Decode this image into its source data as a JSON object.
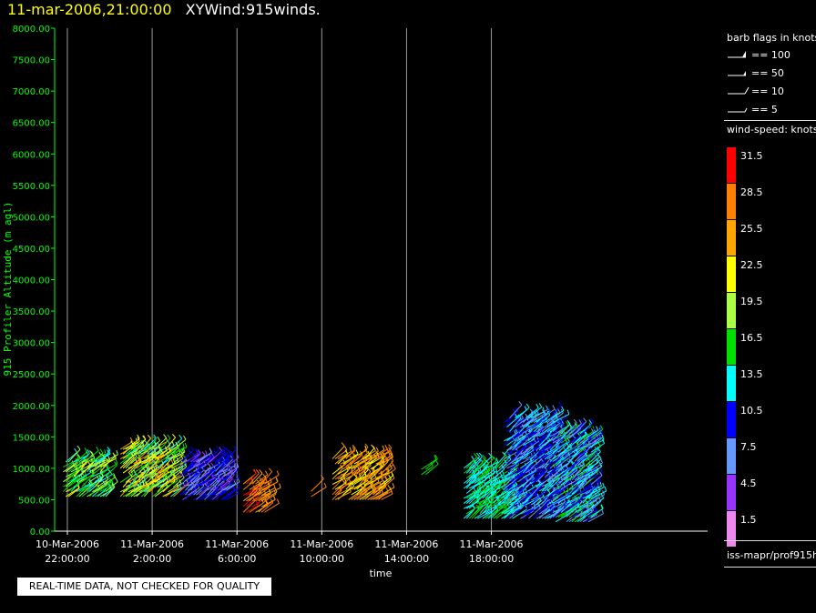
{
  "header": {
    "timestamp": "11-mar-2006,21:00:00",
    "product": "XYWind:915winds."
  },
  "legend": {
    "barb_title": "barb flags in knots",
    "barbs": [
      {
        "label": "== 100"
      },
      {
        "label": "== 50"
      },
      {
        "label": "== 10"
      },
      {
        "label": "== 5"
      }
    ],
    "speed_title": "wind-speed: knots",
    "colorbar": [
      {
        "label": "31.5",
        "color": "#ff0000"
      },
      {
        "label": "28.5",
        "color": "#ff8000"
      },
      {
        "label": "25.5",
        "color": "#ffa500"
      },
      {
        "label": "22.5",
        "color": "#ffff00"
      },
      {
        "label": "19.5",
        "color": "#aaff44"
      },
      {
        "label": "16.5",
        "color": "#00e000"
      },
      {
        "label": "13.5",
        "color": "#00ffff"
      },
      {
        "label": "10.5",
        "color": "#0000ff"
      },
      {
        "label": "7.5",
        "color": "#6699ff"
      },
      {
        "label": "4.5",
        "color": "#9933ff"
      },
      {
        "label": "1.5",
        "color": "#ee88ee"
      }
    ],
    "source_path": "iss-mapr/prof915h"
  },
  "notice": "REAL-TIME DATA, NOT CHECKED FOR QUALITY",
  "chart_data": {
    "type": "scatter",
    "title": "",
    "xlabel": "time",
    "ylabel": "915 Profiler Altitude (m agl)",
    "ylim": [
      0,
      8000
    ],
    "yticks": [
      "0.00",
      "500.00",
      "1000.00",
      "1500.00",
      "2000.00",
      "2500.00",
      "3000.00",
      "3500.00",
      "4000.00",
      "4500.00",
      "5000.00",
      "5500.00",
      "6000.00",
      "6500.00",
      "7000.00",
      "7500.00",
      "8000.00"
    ],
    "xlim_hours": [
      -2.6,
      28.2
    ],
    "xticks": [
      {
        "date": "10-Mar-2006",
        "time": "22:00:00",
        "hour": -2
      },
      {
        "date": "11-Mar-2006",
        "time": "2:00:00",
        "hour": 2
      },
      {
        "date": "11-Mar-2006",
        "time": "6:00:00",
        "hour": 6
      },
      {
        "date": "11-Mar-2006",
        "time": "10:00:00",
        "hour": 10
      },
      {
        "date": "11-Mar-2006",
        "time": "14:00:00",
        "hour": 14
      },
      {
        "date": "11-Mar-2006",
        "time": "18:00:00",
        "hour": 18
      }
    ],
    "grid": "vertical",
    "barb_clusters": [
      {
        "t_start": -2.2,
        "t_end": -0.2,
        "alt_min": 550,
        "alt_max": 1100,
        "speed": [
          13,
          22
        ]
      },
      {
        "t_start": 0.5,
        "t_end": 3.0,
        "alt_min": 550,
        "alt_max": 1300,
        "speed": [
          14,
          26
        ]
      },
      {
        "t_start": 3.3,
        "t_end": 5.5,
        "alt_min": 500,
        "alt_max": 1100,
        "speed": [
          4,
          12
        ]
      },
      {
        "t_start": 6.3,
        "t_end": 7.3,
        "alt_min": 300,
        "alt_max": 750,
        "speed": [
          25,
          31
        ]
      },
      {
        "t_start": 9.5,
        "t_end": 9.5,
        "alt_min": 550,
        "alt_max": 800,
        "speed": [
          27,
          29
        ]
      },
      {
        "t_start": 10.5,
        "t_end": 12.8,
        "alt_min": 500,
        "alt_max": 1150,
        "speed": [
          22,
          30
        ]
      },
      {
        "t_start": 14.7,
        "t_end": 14.9,
        "alt_min": 900,
        "alt_max": 1150,
        "speed": [
          16,
          17
        ]
      },
      {
        "t_start": 16.7,
        "t_end": 18.6,
        "alt_min": 200,
        "alt_max": 1000,
        "speed": [
          12,
          17
        ]
      },
      {
        "t_start": 18.6,
        "t_end": 20.9,
        "alt_min": 200,
        "alt_max": 1800,
        "speed": [
          7,
          14
        ]
      },
      {
        "t_start": 20.9,
        "t_end": 22.7,
        "alt_min": 150,
        "alt_max": 1550,
        "speed": [
          6,
          17
        ]
      }
    ]
  }
}
